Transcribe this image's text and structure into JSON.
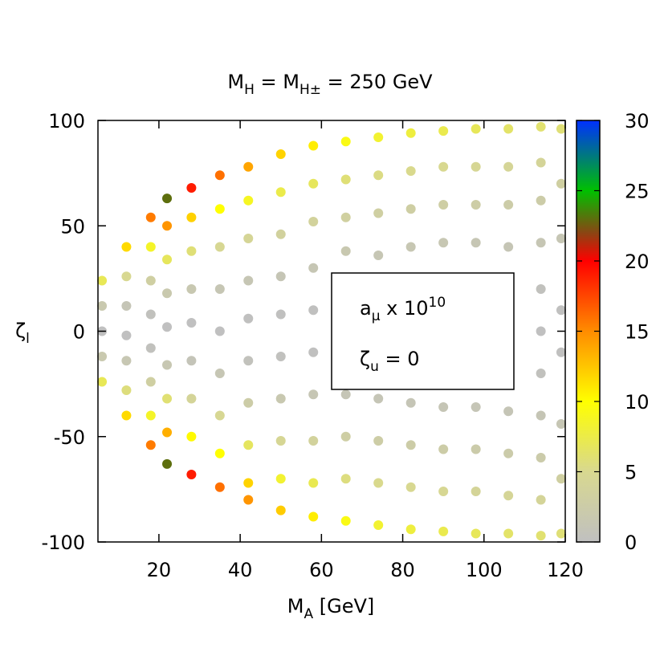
{
  "chart_data": {
    "type": "scatter",
    "title": [
      "M",
      "H",
      " = M",
      "H±",
      " = 250 GeV"
    ],
    "xlabel": [
      "M",
      "A",
      " [GeV]"
    ],
    "ylabel": [
      "ζ",
      "l"
    ],
    "annotation": [
      "a",
      "μ",
      " x 10",
      "10"
    ],
    "annotation2": [
      "ζ",
      "u",
      " = 0"
    ],
    "xlim": [
      5,
      120
    ],
    "ylim": [
      -100,
      100
    ],
    "xticks": [
      20,
      40,
      60,
      80,
      100,
      120
    ],
    "yticks": [
      -100,
      -50,
      0,
      50,
      100
    ],
    "clim": [
      0,
      30
    ],
    "cticks": [
      0,
      5,
      10,
      15,
      20,
      25,
      30
    ],
    "colormap": [
      {
        "value": 0,
        "color": "#c0c0c0"
      },
      {
        "value": 5,
        "color": "#d8d890"
      },
      {
        "value": 10,
        "color": "#ffff00"
      },
      {
        "value": 15,
        "color": "#ff8c00"
      },
      {
        "value": 20,
        "color": "#ff0000"
      },
      {
        "value": 22,
        "color": "#8b4513"
      },
      {
        "value": 25,
        "color": "#00c000"
      },
      {
        "value": 30,
        "color": "#0030ff"
      }
    ],
    "x": [
      6,
      6,
      6,
      6,
      6,
      12,
      12,
      12,
      12,
      12,
      12,
      12,
      18,
      18,
      18,
      18,
      18,
      18,
      18,
      18,
      22,
      22,
      22,
      22,
      22,
      22,
      22,
      22,
      22,
      28,
      28,
      28,
      28,
      28,
      28,
      28,
      28,
      28,
      35,
      35,
      35,
      35,
      35,
      35,
      35,
      35,
      35,
      42,
      42,
      42,
      42,
      42,
      42,
      42,
      42,
      42,
      42,
      50,
      50,
      50,
      50,
      50,
      50,
      50,
      50,
      50,
      50,
      58,
      58,
      58,
      58,
      58,
      58,
      58,
      58,
      58,
      58,
      66,
      66,
      66,
      66,
      66,
      66,
      66,
      66,
      74,
      74,
      74,
      74,
      74,
      74,
      74,
      74,
      82,
      82,
      82,
      82,
      82,
      82,
      82,
      82,
      90,
      90,
      90,
      90,
      90,
      90,
      90,
      90,
      98,
      98,
      98,
      98,
      98,
      98,
      98,
      98,
      106,
      106,
      106,
      106,
      106,
      106,
      106,
      106,
      114,
      114,
      114,
      114,
      114,
      114,
      114,
      114,
      114,
      114,
      114,
      119,
      119,
      119,
      119,
      119,
      119,
      119,
      119
    ],
    "y": [
      24,
      12,
      0,
      -12,
      -24,
      40,
      26,
      12,
      -2,
      -14,
      -28,
      -40,
      54,
      40,
      24,
      8,
      -8,
      -24,
      -40,
      -54,
      63,
      50,
      34,
      18,
      2,
      -16,
      -32,
      -48,
      -63,
      68,
      54,
      38,
      20,
      4,
      -14,
      -32,
      -50,
      -68,
      74,
      58,
      40,
      20,
      0,
      -20,
      -40,
      -58,
      -74,
      78,
      62,
      44,
      24,
      6,
      -14,
      -34,
      -54,
      -72,
      -80,
      84,
      66,
      46,
      26,
      8,
      -12,
      -32,
      -52,
      -70,
      -85,
      88,
      70,
      52,
      30,
      10,
      -10,
      -30,
      -52,
      -72,
      -88,
      90,
      72,
      54,
      38,
      -30,
      -50,
      -70,
      -90,
      92,
      74,
      56,
      36,
      -32,
      -52,
      -72,
      -92,
      94,
      76,
      58,
      40,
      -34,
      -54,
      -74,
      -94,
      95,
      78,
      60,
      42,
      -36,
      -56,
      -76,
      -95,
      96,
      78,
      60,
      42,
      -36,
      -56,
      -76,
      -96,
      96,
      78,
      60,
      40,
      -38,
      -58,
      -78,
      -96,
      97,
      80,
      62,
      42,
      20,
      0,
      -20,
      -40,
      -60,
      -80,
      -97,
      96,
      70,
      44,
      10,
      -10,
      -44,
      -70,
      -96
    ],
    "z": [
      7,
      1.8,
      0,
      1.8,
      7,
      11.6,
      4.9,
      1,
      0,
      1.4,
      5.7,
      11.6,
      15.6,
      8.6,
      3.1,
      0.3,
      0.3,
      3.1,
      8.6,
      15.6,
      23,
      14.6,
      6.8,
      1.9,
      0,
      1.5,
      6,
      13.5,
      23,
      19,
      12,
      5.9,
      1.6,
      0,
      0.8,
      4.2,
      10.2,
      19,
      16,
      10,
      4.7,
      1.2,
      0,
      1.2,
      4.7,
      10,
      16,
      13.9,
      8.8,
      4.4,
      1.3,
      0.1,
      0.4,
      2.6,
      6.7,
      11.9,
      14.6,
      11.9,
      7.4,
      3.6,
      1.1,
      0.1,
      0.2,
      1.7,
      4.6,
      8.3,
      12.2,
      10.8,
      6.8,
      3.8,
      1.2,
      0.1,
      0.1,
      1.2,
      3.8,
      7.2,
      10.8,
      9.3,
      5.9,
      3.3,
      1.7,
      1,
      2.9,
      5.6,
      9.3,
      8.3,
      5.4,
      3.1,
      1.3,
      1,
      2.7,
      5.1,
      8.3,
      7.8,
      5.1,
      3,
      1.4,
      1,
      2.6,
      4.9,
      7.8,
      7.3,
      5,
      2.9,
      1.4,
      1.1,
      2.6,
      4.7,
      7.3,
      6.9,
      4.6,
      2.7,
      1.3,
      1,
      2.3,
      4.2,
      6.9,
      6.4,
      4.3,
      2.5,
      1.1,
      1,
      2.3,
      4.3,
      6.4,
      6.1,
      4.2,
      2.5,
      1.2,
      0.3,
      0,
      0.3,
      1.1,
      2.3,
      4.2,
      6.1,
      5.9,
      3.2,
      1.3,
      0.1,
      0.1,
      1.3,
      3.2,
      5.9
    ]
  }
}
